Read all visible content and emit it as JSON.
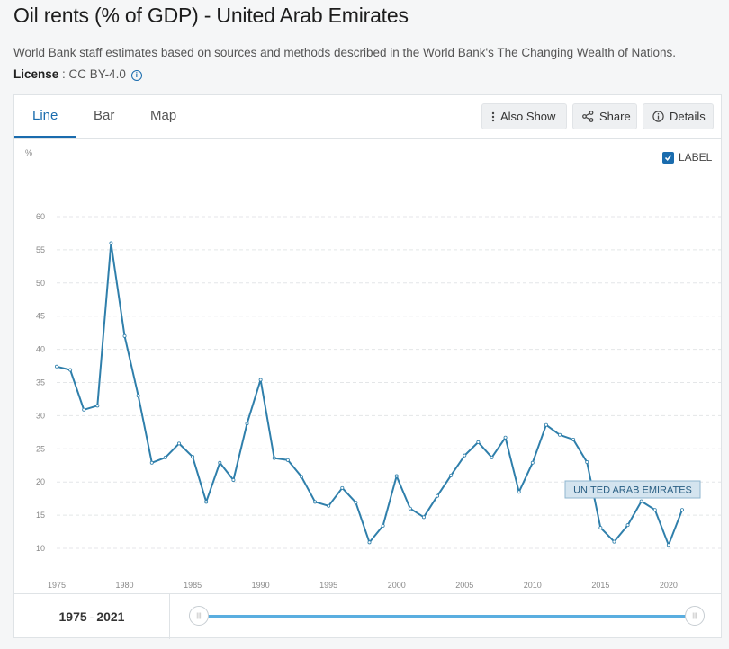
{
  "page": {
    "title": "Oil rents (% of GDP) - United Arab Emirates",
    "description": "World Bank staff estimates based on sources and methods described in the World Bank's The Changing Wealth of Nations.",
    "license_label": "License",
    "license_sep": " : ",
    "license_value": "CC BY-4.0"
  },
  "tabs": [
    {
      "label": "Line",
      "active": true
    },
    {
      "label": "Bar",
      "active": false
    },
    {
      "label": "Map",
      "active": false
    }
  ],
  "toolbar": {
    "also_show": "Also Show",
    "share": "Share",
    "details": "Details"
  },
  "label_toggle": {
    "label": "LABEL",
    "checked": true
  },
  "range": {
    "start": "1975",
    "sep": "-",
    "end": "2021"
  },
  "colors": {
    "line": "#2f7fab",
    "accent": "#1a6cae",
    "slider": "#5aaee0"
  },
  "chart_data": {
    "type": "line",
    "ylabel": "%",
    "ylim": [
      10,
      60
    ],
    "yticks": [
      10,
      15,
      20,
      25,
      30,
      35,
      40,
      45,
      50,
      55,
      60
    ],
    "xlim": [
      1975,
      2021
    ],
    "xticks": [
      1975,
      1980,
      1985,
      1990,
      1995,
      2000,
      2005,
      2010,
      2015,
      2020
    ],
    "grid": true,
    "series": [
      {
        "name": "UNITED ARAB EMIRATES",
        "x": [
          1975,
          1976,
          1977,
          1978,
          1979,
          1980,
          1981,
          1982,
          1983,
          1984,
          1985,
          1986,
          1987,
          1988,
          1989,
          1990,
          1991,
          1992,
          1993,
          1994,
          1995,
          1996,
          1997,
          1998,
          1999,
          2000,
          2001,
          2002,
          2003,
          2004,
          2005,
          2006,
          2007,
          2008,
          2009,
          2010,
          2011,
          2012,
          2013,
          2014,
          2015,
          2016,
          2017,
          2018,
          2019,
          2020,
          2021
        ],
        "values": [
          37.4,
          36.9,
          30.9,
          31.5,
          56.0,
          42.0,
          33.0,
          22.9,
          23.7,
          25.8,
          23.8,
          17.0,
          22.9,
          20.3,
          28.8,
          35.4,
          23.6,
          23.3,
          20.8,
          17.0,
          16.4,
          19.1,
          16.9,
          10.9,
          13.4,
          20.9,
          16.0,
          14.7,
          17.9,
          21.0,
          24.0,
          26.0,
          23.7,
          26.7,
          18.5,
          22.9,
          28.6,
          27.1,
          26.4,
          23.0,
          13.1,
          11.0,
          13.5,
          17.1,
          15.8,
          10.5,
          15.8
        ]
      }
    ]
  }
}
